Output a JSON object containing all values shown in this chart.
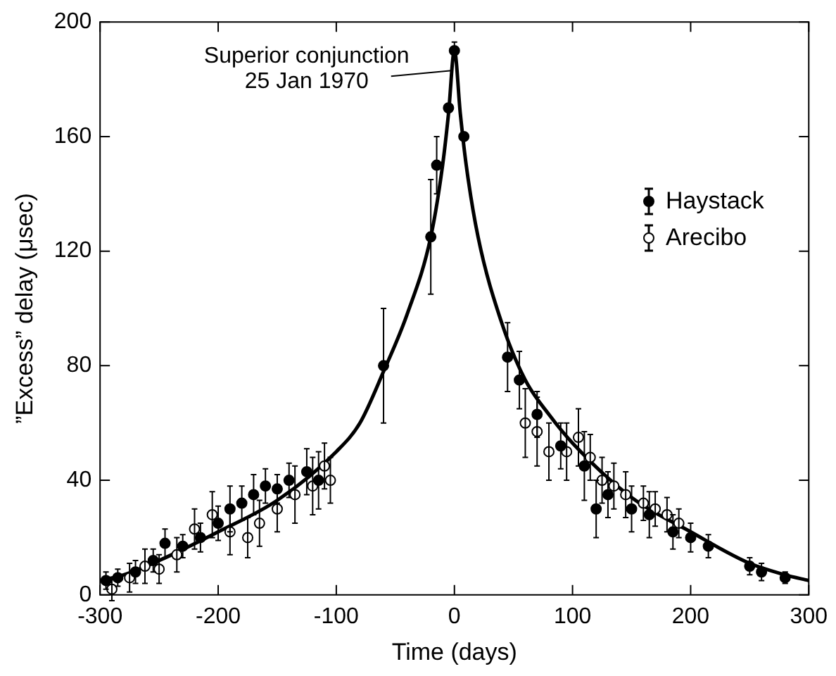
{
  "chart_data": {
    "type": "scatter",
    "xlabel": "Time (days)",
    "ylabel": "”Excess” delay (μsec)",
    "xlim": [
      -300,
      300
    ],
    "xticks": [
      -300,
      -200,
      -100,
      0,
      100,
      200,
      300
    ],
    "ylim": [
      0,
      200
    ],
    "yticks": [
      0,
      40,
      80,
      120,
      160,
      200
    ],
    "grid": false,
    "legend": "top right",
    "marker": "circle",
    "annotations": [
      {
        "text": "Superior conjunction\n25 Jan 1970",
        "x": 0,
        "y": 183
      }
    ],
    "series": [
      {
        "type": "line",
        "color": "#000000",
        "marker": "none",
        "x": [
          -300,
          -280,
          -250,
          -200,
          -150,
          -100,
          -80,
          -60,
          -40,
          -20,
          -10,
          -5,
          0,
          5,
          10,
          20,
          40,
          60,
          80,
          100,
          150,
          200,
          250,
          280,
          300
        ],
        "values": [
          5,
          7,
          12,
          22,
          33,
          50,
          60,
          78,
          98,
          125,
          150,
          168,
          190,
          168,
          150,
          125,
          95,
          75,
          63,
          53,
          34,
          22,
          11,
          7,
          5
        ]
      },
      {
        "name": "Haystack",
        "color": "#000000",
        "x": [
          -295,
          -285,
          -270,
          -255,
          -245,
          -230,
          -215,
          -200,
          -190,
          -180,
          -170,
          -160,
          -150,
          -140,
          -125,
          -115,
          -60,
          -20,
          -15,
          -5,
          0,
          8,
          45,
          55,
          70,
          90,
          110,
          120,
          130,
          150,
          165,
          185,
          200,
          215,
          250,
          260,
          280
        ],
        "values": [
          5,
          6,
          8,
          12,
          18,
          17,
          20,
          25,
          30,
          32,
          35,
          38,
          37,
          40,
          43,
          40,
          80,
          125,
          150,
          170,
          190,
          160,
          83,
          75,
          63,
          52,
          45,
          30,
          35,
          30,
          28,
          22,
          20,
          17,
          10,
          8,
          6
        ],
        "errors": [
          3,
          3,
          4,
          4,
          5,
          4,
          5,
          6,
          8,
          6,
          7,
          6,
          5,
          6,
          8,
          10,
          20,
          20,
          10,
          null,
          3,
          null,
          12,
          10,
          8,
          8,
          12,
          10,
          8,
          8,
          8,
          6,
          5,
          4,
          3,
          3,
          2
        ]
      },
      {
        "name": "Arecibo",
        "color": "#ffffff",
        "x": [
          -290,
          -275,
          -262,
          -250,
          -235,
          -220,
          -205,
          -190,
          -175,
          -165,
          -150,
          -135,
          -120,
          -110,
          -105,
          60,
          70,
          80,
          95,
          105,
          115,
          125,
          135,
          145,
          160,
          170,
          180,
          190
        ],
        "values": [
          2,
          6,
          10,
          9,
          14,
          23,
          28,
          22,
          20,
          25,
          30,
          35,
          38,
          45,
          40,
          60,
          57,
          50,
          50,
          55,
          48,
          40,
          38,
          35,
          32,
          30,
          28,
          25
        ],
        "errors": [
          4,
          5,
          6,
          5,
          6,
          7,
          8,
          8,
          7,
          8,
          8,
          10,
          10,
          8,
          8,
          12,
          12,
          10,
          10,
          10,
          8,
          8,
          8,
          8,
          6,
          6,
          6,
          5
        ]
      }
    ]
  }
}
